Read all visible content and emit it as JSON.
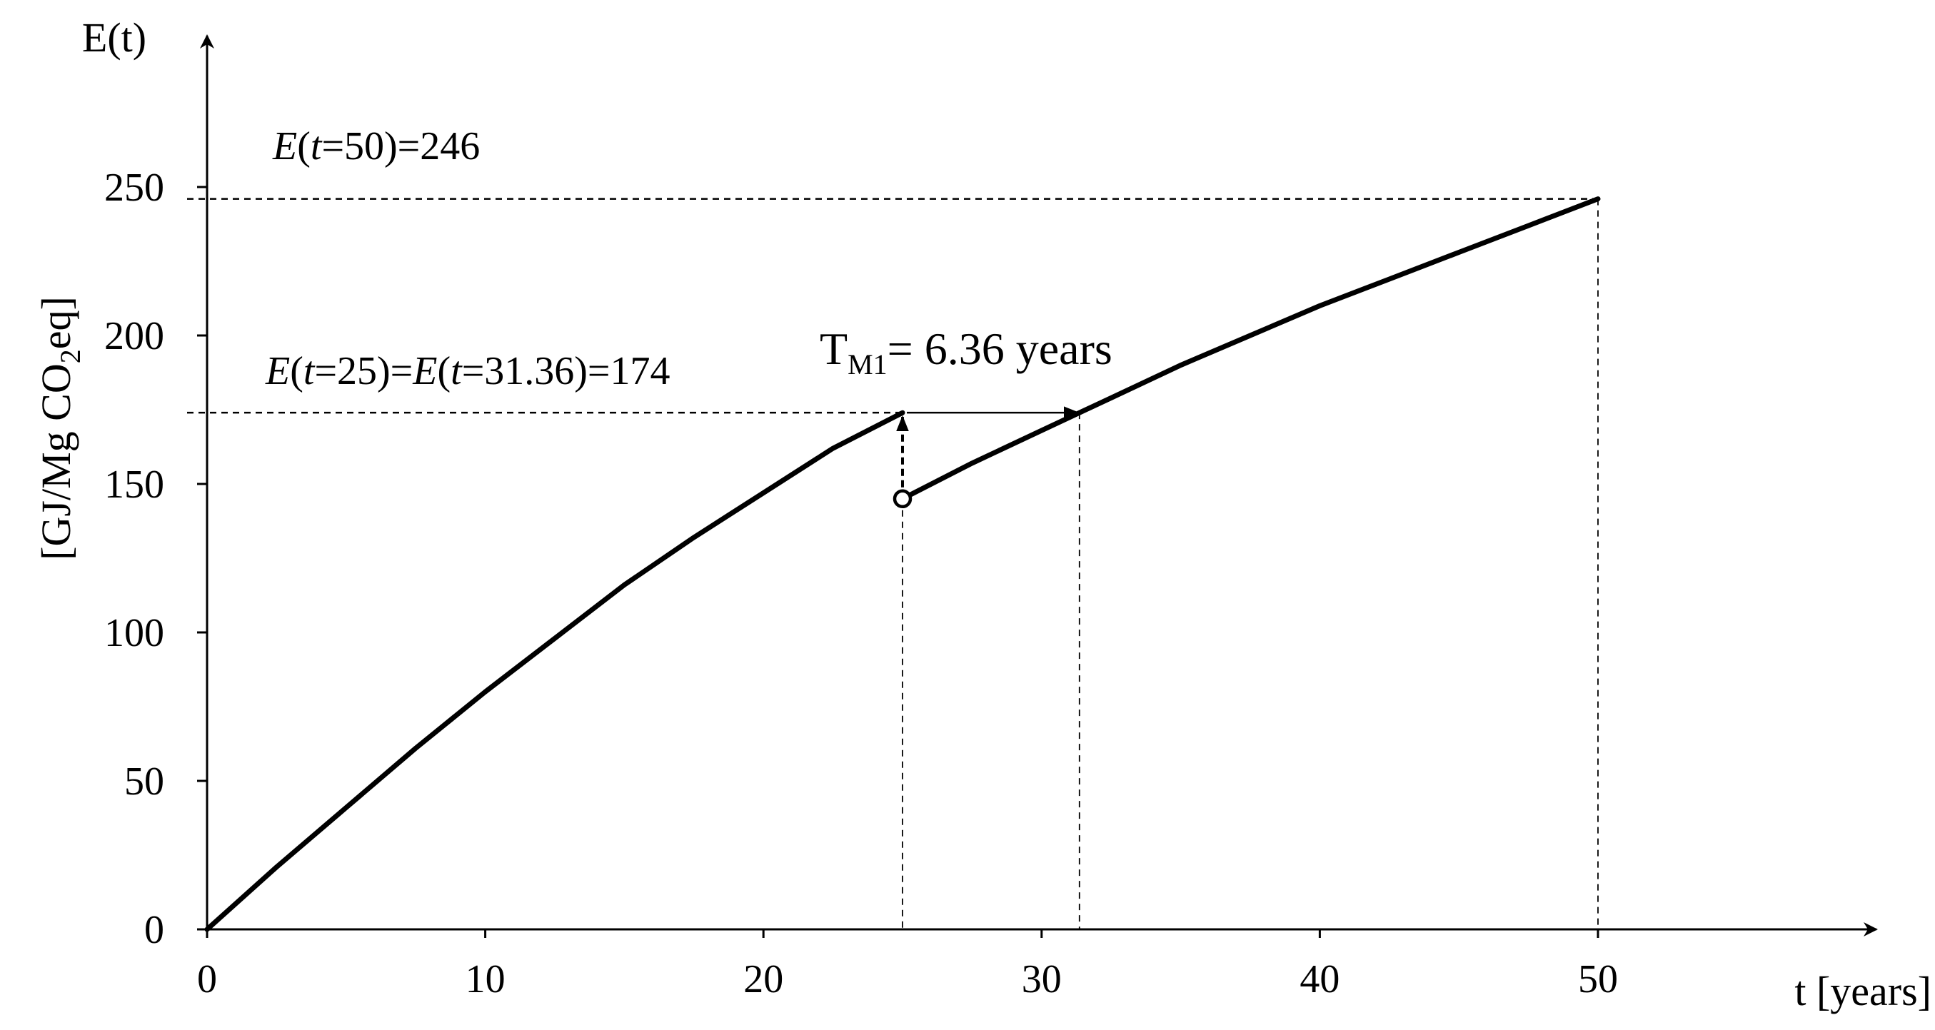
{
  "chart_data": {
    "type": "line",
    "ylabel_top": "E(t)",
    "ylabel_units": {
      "pre": "[GJ/Mg CO",
      "sub": "2",
      "post": "eq]"
    },
    "xlabel": "t [years]",
    "xlim": [
      0,
      60
    ],
    "ylim": [
      0,
      280
    ],
    "xticks": [
      0,
      10,
      20,
      30,
      40,
      50
    ],
    "yticks": [
      0,
      50,
      100,
      150,
      200,
      250
    ],
    "grid": false,
    "series": [
      {
        "segment": "before-maintenance",
        "x": [
          0,
          2.5,
          5,
          7.5,
          10,
          12.5,
          15,
          17.5,
          20,
          22.5,
          25
        ],
        "y": [
          0,
          21,
          41,
          61,
          80,
          98,
          116,
          132,
          147,
          162,
          174
        ]
      },
      {
        "segment": "after-maintenance",
        "x": [
          25,
          27.5,
          30,
          32.5,
          35,
          37.5,
          40,
          42.5,
          45,
          47.5,
          50
        ],
        "y": [
          145,
          157,
          168,
          179,
          190,
          200,
          210,
          219,
          228,
          237,
          246
        ]
      }
    ],
    "annotations": {
      "e50": {
        "italic1": "E",
        "p1": "(",
        "italic2": "t",
        "p2": "=50)=246"
      },
      "e25": {
        "italic1": "E",
        "p1": "(",
        "italic2": "t",
        "p2": "=25)=",
        "italic3": "E",
        "p3": "(",
        "italic4": "t",
        "p4": "=31.36)=174"
      },
      "tm": {
        "main": "T",
        "sub": "M1",
        "rest": "= 6.36 years"
      }
    },
    "reference_points": {
      "t25": 25,
      "t31": 31.36,
      "t50": 50,
      "e174": 174,
      "e246": 246,
      "e_restart": 145
    }
  }
}
